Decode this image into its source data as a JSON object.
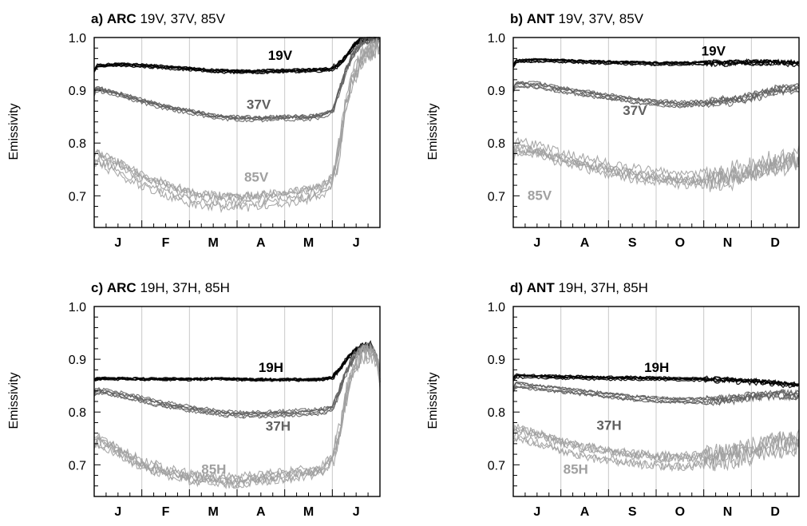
{
  "chart_data": [
    {
      "type": "line",
      "panel_label": "a)",
      "region": "ARC",
      "title_rest": "19V, 37V, 85V",
      "ylabel": "Emissivity",
      "ylim": [
        0.64,
        1.0
      ],
      "yticks": [
        "0.7",
        "0.8",
        "0.9",
        "1.0"
      ],
      "ytick_values": [
        0.7,
        0.8,
        0.9,
        1.0
      ],
      "xlim": [
        0,
        6
      ],
      "month_labels": [
        "J",
        "F",
        "M",
        "A",
        "M",
        "J"
      ],
      "grid": "vertical month lines",
      "series": [
        {
          "name": "19V",
          "color": "#000000",
          "label_color": "#000000",
          "label_at": [
            3.65,
            0.958
          ],
          "x": [
            0,
            0.05,
            0.5,
            1,
            1.5,
            2,
            2.5,
            3,
            3.5,
            4,
            4.5,
            4.8,
            5,
            5.15,
            5.3,
            5.45,
            5.6,
            5.8,
            6
          ],
          "y": [
            0.935,
            0.945,
            0.948,
            0.946,
            0.943,
            0.94,
            0.936,
            0.935,
            0.935,
            0.936,
            0.937,
            0.938,
            0.94,
            0.95,
            0.965,
            0.985,
            0.995,
            1.0,
            1.0
          ]
        },
        {
          "name": "37V",
          "color": "#606060",
          "label_color": "#606060",
          "label_at": [
            3.2,
            0.865
          ],
          "x": [
            0,
            0.05,
            0.5,
            1,
            1.5,
            2,
            2.5,
            3,
            3.5,
            4,
            4.5,
            4.8,
            5,
            5.15,
            5.3,
            5.45,
            5.6,
            5.8,
            6
          ],
          "y": [
            0.895,
            0.903,
            0.892,
            0.88,
            0.868,
            0.86,
            0.85,
            0.847,
            0.846,
            0.848,
            0.848,
            0.852,
            0.86,
            0.9,
            0.94,
            0.97,
            0.99,
            0.995,
            0.995
          ]
        },
        {
          "name": "85V",
          "color": "#a0a0a0",
          "label_color": "#a0a0a0",
          "label_at": [
            3.15,
            0.727
          ],
          "x": [
            0,
            0.05,
            0.5,
            1,
            1.5,
            2,
            2.5,
            3,
            3.5,
            4,
            4.5,
            4.8,
            5,
            5.15,
            5.3,
            5.45,
            5.6,
            5.8,
            6
          ],
          "y": [
            0.765,
            0.775,
            0.755,
            0.732,
            0.715,
            0.7,
            0.693,
            0.69,
            0.695,
            0.7,
            0.705,
            0.712,
            0.73,
            0.79,
            0.88,
            0.93,
            0.96,
            0.975,
            0.985
          ]
        }
      ]
    },
    {
      "type": "line",
      "panel_label": "b)",
      "region": "ANT",
      "title_rest": "19V, 37V, 85V",
      "ylabel": "Emissivity",
      "ylim": [
        0.64,
        1.0
      ],
      "yticks": [
        "0.7",
        "0.8",
        "0.9",
        "1.0"
      ],
      "ytick_values": [
        0.7,
        0.8,
        0.9,
        1.0
      ],
      "xlim": [
        0,
        6
      ],
      "month_labels": [
        "J",
        "A",
        "S",
        "O",
        "N",
        "D"
      ],
      "grid": "vertical month lines",
      "series": [
        {
          "name": "19V",
          "color": "#000000",
          "label_color": "#000000",
          "label_at": [
            3.95,
            0.966
          ],
          "x": [
            0,
            0.05,
            0.5,
            1,
            1.5,
            2,
            2.5,
            3,
            3.5,
            4,
            4.5,
            5,
            5.5,
            6
          ],
          "y": [
            0.945,
            0.954,
            0.956,
            0.955,
            0.953,
            0.952,
            0.951,
            0.95,
            0.95,
            0.951,
            0.951,
            0.952,
            0.952,
            0.95
          ]
        },
        {
          "name": "37V",
          "color": "#606060",
          "label_color": "#606060",
          "label_at": [
            2.3,
            0.853
          ],
          "x": [
            0,
            0.05,
            0.5,
            1,
            1.5,
            2,
            2.5,
            3,
            3.5,
            4,
            4.5,
            5,
            5.5,
            6
          ],
          "y": [
            0.9,
            0.912,
            0.91,
            0.902,
            0.895,
            0.888,
            0.882,
            0.877,
            0.874,
            0.876,
            0.88,
            0.888,
            0.9,
            0.905
          ]
        },
        {
          "name": "85V",
          "color": "#a0a0a0",
          "label_color": "#a0a0a0",
          "label_at": [
            0.3,
            0.692
          ],
          "x": [
            0,
            0.05,
            0.5,
            1,
            1.5,
            2,
            2.5,
            3,
            3.5,
            4,
            4.5,
            5,
            5.5,
            6
          ],
          "y": [
            0.78,
            0.795,
            0.79,
            0.775,
            0.765,
            0.755,
            0.745,
            0.74,
            0.735,
            0.735,
            0.74,
            0.75,
            0.765,
            0.775
          ]
        }
      ]
    },
    {
      "type": "line",
      "panel_label": "c)",
      "region": "ARC",
      "title_rest": "19H, 37H, 85H",
      "ylabel": "Emissivity",
      "ylim": [
        0.64,
        1.0
      ],
      "yticks": [
        "0.7",
        "0.8",
        "0.9",
        "1.0"
      ],
      "ytick_values": [
        0.7,
        0.8,
        0.9,
        1.0
      ],
      "xlim": [
        0,
        6
      ],
      "month_labels": [
        "J",
        "F",
        "M",
        "A",
        "M",
        "J"
      ],
      "grid": "vertical month lines",
      "series": [
        {
          "name": "19H",
          "color": "#000000",
          "label_color": "#000000",
          "label_at": [
            3.45,
            0.876
          ],
          "x": [
            0,
            0.05,
            0.5,
            1,
            1.5,
            2,
            2.5,
            3,
            3.5,
            4,
            4.5,
            4.8,
            5,
            5.15,
            5.3,
            5.45,
            5.6,
            5.8,
            5.95,
            6
          ],
          "y": [
            0.86,
            0.863,
            0.863,
            0.862,
            0.862,
            0.862,
            0.863,
            0.862,
            0.861,
            0.861,
            0.861,
            0.862,
            0.865,
            0.88,
            0.9,
            0.915,
            0.925,
            0.93,
            0.9,
            0.86
          ]
        },
        {
          "name": "37H",
          "color": "#606060",
          "label_color": "#606060",
          "label_at": [
            3.6,
            0.765
          ],
          "x": [
            0,
            0.05,
            0.5,
            1,
            1.5,
            2,
            2.5,
            3,
            3.5,
            4,
            4.5,
            4.8,
            5,
            5.15,
            5.3,
            5.45,
            5.6,
            5.8,
            5.95,
            6
          ],
          "y": [
            0.835,
            0.842,
            0.835,
            0.825,
            0.815,
            0.808,
            0.801,
            0.797,
            0.797,
            0.799,
            0.801,
            0.803,
            0.81,
            0.84,
            0.88,
            0.905,
            0.92,
            0.925,
            0.9,
            0.86
          ]
        },
        {
          "name": "85H",
          "color": "#a0a0a0",
          "label_color": "#a0a0a0",
          "label_at": [
            2.25,
            0.683
          ],
          "x": [
            0,
            0.05,
            0.5,
            1,
            1.5,
            2,
            2.5,
            3,
            3.5,
            4,
            4.5,
            4.8,
            5,
            5.15,
            5.3,
            5.45,
            5.6,
            5.8,
            5.95,
            6
          ],
          "y": [
            0.735,
            0.745,
            0.725,
            0.7,
            0.685,
            0.675,
            0.67,
            0.668,
            0.672,
            0.678,
            0.683,
            0.69,
            0.71,
            0.76,
            0.83,
            0.88,
            0.905,
            0.915,
            0.9,
            0.86
          ]
        }
      ]
    },
    {
      "type": "line",
      "panel_label": "d)",
      "region": "ANT",
      "title_rest": "19H, 37H, 85H",
      "ylabel": "Emissivity",
      "ylim": [
        0.64,
        1.0
      ],
      "yticks": [
        "0.7",
        "0.8",
        "0.9",
        "1.0"
      ],
      "ytick_values": [
        0.7,
        0.8,
        0.9,
        1.0
      ],
      "xlim": [
        0,
        6
      ],
      "month_labels": [
        "J",
        "A",
        "S",
        "O",
        "N",
        "D"
      ],
      "grid": "vertical month lines",
      "series": [
        {
          "name": "19H",
          "color": "#000000",
          "label_color": "#000000",
          "label_at": [
            2.75,
            0.876
          ],
          "x": [
            0,
            0.05,
            0.5,
            1,
            1.5,
            2,
            2.5,
            3,
            3.5,
            4,
            4.5,
            5,
            5.5,
            6
          ],
          "y": [
            0.862,
            0.868,
            0.867,
            0.866,
            0.865,
            0.864,
            0.864,
            0.863,
            0.862,
            0.862,
            0.86,
            0.858,
            0.855,
            0.85
          ]
        },
        {
          "name": "37H",
          "color": "#606060",
          "label_color": "#606060",
          "label_at": [
            1.75,
            0.766
          ],
          "x": [
            0,
            0.05,
            0.5,
            1,
            1.5,
            2,
            2.5,
            3,
            3.5,
            4,
            4.5,
            5,
            5.5,
            6
          ],
          "y": [
            0.84,
            0.85,
            0.845,
            0.84,
            0.835,
            0.83,
            0.825,
            0.822,
            0.82,
            0.82,
            0.822,
            0.828,
            0.832,
            0.83
          ]
        },
        {
          "name": "85H",
          "color": "#a0a0a0",
          "label_color": "#a0a0a0",
          "label_at": [
            1.05,
            0.683
          ],
          "x": [
            0,
            0.05,
            0.5,
            1,
            1.5,
            2,
            2.5,
            3,
            3.5,
            4,
            4.5,
            5,
            5.5,
            6
          ],
          "y": [
            0.75,
            0.76,
            0.75,
            0.735,
            0.725,
            0.718,
            0.712,
            0.708,
            0.706,
            0.71,
            0.716,
            0.725,
            0.735,
            0.74
          ]
        }
      ]
    }
  ]
}
